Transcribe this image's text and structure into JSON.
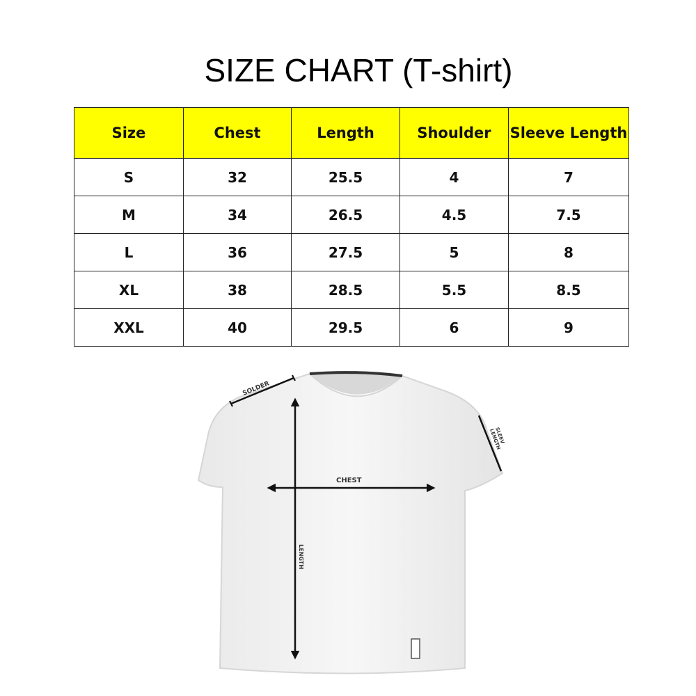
{
  "title": "SIZE CHART (T-shirt)",
  "table": {
    "header_color": "#ffff00",
    "columns": [
      "Size",
      "Chest",
      "Length",
      "Shoulder",
      "Sleeve Length"
    ],
    "rows": [
      [
        "S",
        "32",
        "25.5",
        "4",
        "7"
      ],
      [
        "M",
        "34",
        "26.5",
        "4.5",
        "7.5"
      ],
      [
        "L",
        "36",
        "27.5",
        "5",
        "8"
      ],
      [
        "XL",
        "38",
        "28.5",
        "5.5",
        "8.5"
      ],
      [
        "XXL",
        "40",
        "29.5",
        "6",
        "9"
      ]
    ]
  },
  "diagram": {
    "labels": {
      "shoulder": "SOLDER",
      "sleeve_1": "SLEEV",
      "sleeve_2": "LENGTH",
      "chest": "CHEST",
      "length": "LENGTH"
    }
  }
}
